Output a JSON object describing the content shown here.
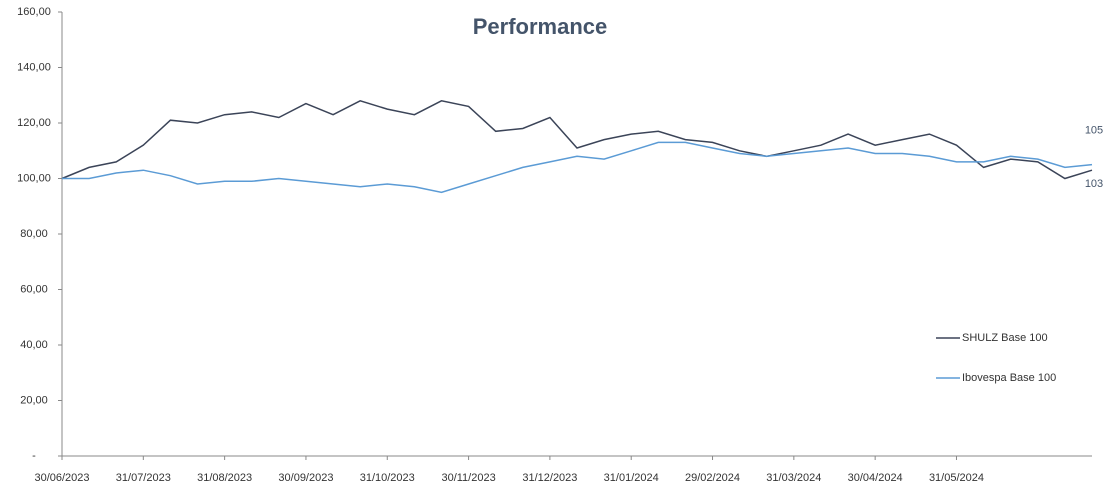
{
  "chart_data": {
    "type": "line",
    "title": "Performance",
    "categories": [
      "30/06/2023",
      null,
      null,
      "31/07/2023",
      null,
      null,
      "31/08/2023",
      null,
      null,
      "30/09/2023",
      null,
      null,
      "31/10/2023",
      null,
      null,
      "30/11/2023",
      null,
      null,
      "31/12/2023",
      null,
      null,
      "31/01/2024",
      null,
      null,
      "29/02/2024",
      null,
      null,
      "31/03/2024",
      null,
      null,
      "30/04/2024",
      null,
      null,
      "31/05/2024",
      null,
      null,
      null,
      null,
      null
    ],
    "series": [
      {
        "name": "SHULZ Base 100",
        "color": "#3b4458",
        "values": [
          100,
          104,
          106,
          112,
          121,
          120,
          123,
          124,
          122,
          127,
          123,
          128,
          125,
          123,
          128,
          126,
          117,
          118,
          122,
          111,
          114,
          116,
          117,
          114,
          113,
          110,
          108,
          110,
          112,
          116,
          112,
          114,
          116,
          112,
          104,
          107,
          106,
          100,
          103
        ],
        "value_labels": [
          null,
          null,
          null,
          null,
          null,
          null,
          null,
          null,
          null,
          null,
          null,
          null,
          null,
          null,
          null,
          null,
          null,
          null,
          null,
          null,
          null,
          null,
          null,
          null,
          null,
          null,
          null,
          null,
          null,
          null,
          null,
          null,
          null,
          null,
          null,
          null,
          null,
          null,
          "103"
        ]
      },
      {
        "name": "Ibovespa Base 100",
        "color": "#5b9bd5",
        "values": [
          100,
          100,
          102,
          103,
          101,
          98,
          99,
          99,
          100,
          99,
          98,
          97,
          98,
          97,
          95,
          98,
          101,
          104,
          106,
          108,
          107,
          110,
          113,
          113,
          111,
          109,
          108,
          109,
          110,
          111,
          109,
          109,
          108,
          106,
          106,
          108,
          107,
          104,
          105
        ],
        "value_labels": [
          null,
          null,
          null,
          null,
          null,
          null,
          null,
          null,
          null,
          null,
          null,
          null,
          null,
          null,
          null,
          null,
          null,
          null,
          null,
          null,
          null,
          null,
          null,
          null,
          null,
          null,
          null,
          null,
          null,
          null,
          null,
          null,
          null,
          null,
          null,
          null,
          null,
          null,
          "105"
        ]
      }
    ],
    "ylim": [
      0,
      160
    ],
    "yticks": [
      {
        "value": 0,
        "label": "-"
      },
      {
        "value": 20,
        "label": "20,00"
      },
      {
        "value": 40,
        "label": "40,00"
      },
      {
        "value": 60,
        "label": "60,00"
      },
      {
        "value": 80,
        "label": "80,00"
      },
      {
        "value": 100,
        "label": "100,00"
      },
      {
        "value": 120,
        "label": "120,00"
      },
      {
        "value": 140,
        "label": "140,00"
      },
      {
        "value": 160,
        "label": "160,00"
      }
    ],
    "legend": "right"
  }
}
